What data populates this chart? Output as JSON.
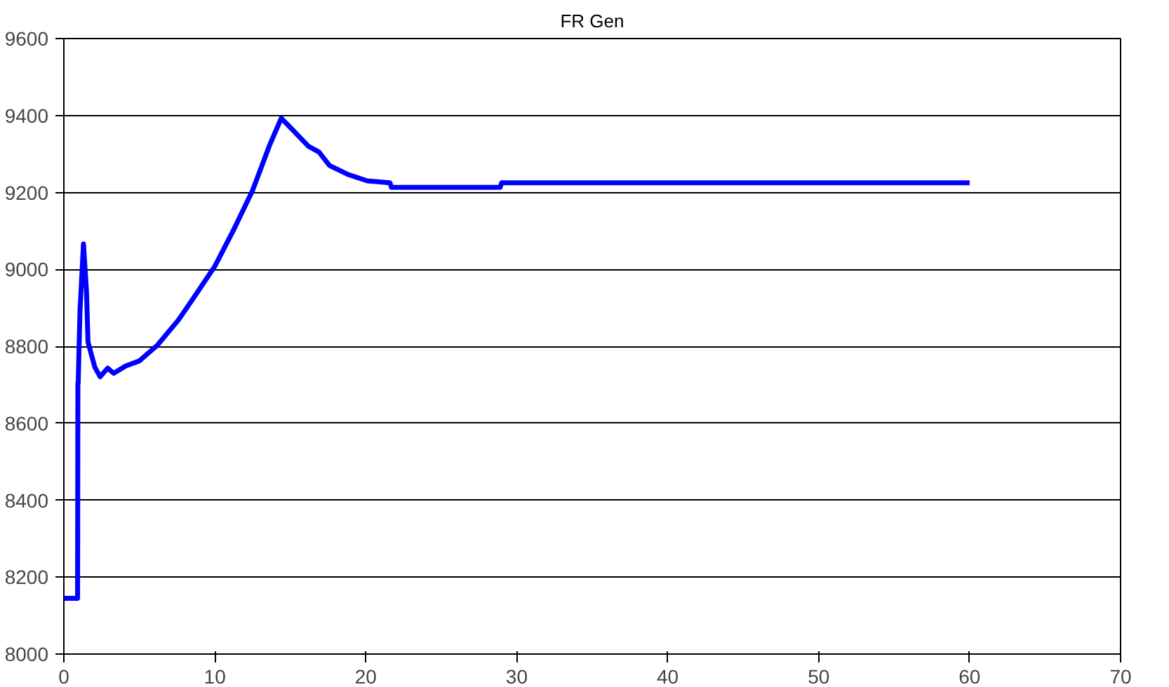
{
  "chart_data": {
    "type": "line",
    "title": "FR Gen",
    "x": [
      0,
      0.91,
      0.93,
      0.95,
      1.07,
      1.3,
      1.5,
      1.6,
      2.05,
      2.4,
      2.9,
      3.3,
      4.1,
      5,
      6.2,
      7.6,
      8.6,
      10,
      11.3,
      12.5,
      13.6,
      14.4,
      15,
      16.2,
      16.9,
      17.6,
      18.8,
      20.1,
      21.6,
      21.7,
      28.9,
      29,
      60
    ],
    "series": [
      {
        "color": "#0000ff",
        "values": [
          8145,
          8145,
          8705,
          8705,
          8893,
          9066,
          8943,
          8811,
          8746,
          8721,
          8743,
          8730,
          8749,
          8762,
          8803,
          8869,
          8926,
          9008,
          9107,
          9205,
          9320,
          9393,
          9369,
          9320,
          9305,
          9270,
          9247,
          9230,
          9225,
          9213,
          9213,
          9225,
          9225
        ]
      }
    ],
    "xlim": [
      0,
      70
    ],
    "xticks": [
      0,
      10,
      20,
      30,
      40,
      50,
      60,
      70
    ],
    "ylim": [
      8000,
      9600
    ],
    "yticks": [
      8000,
      8200,
      8400,
      8600,
      8800,
      9000,
      9200,
      9400,
      9600
    ],
    "grid": "y",
    "marker": "none",
    "line_style": "solid"
  }
}
